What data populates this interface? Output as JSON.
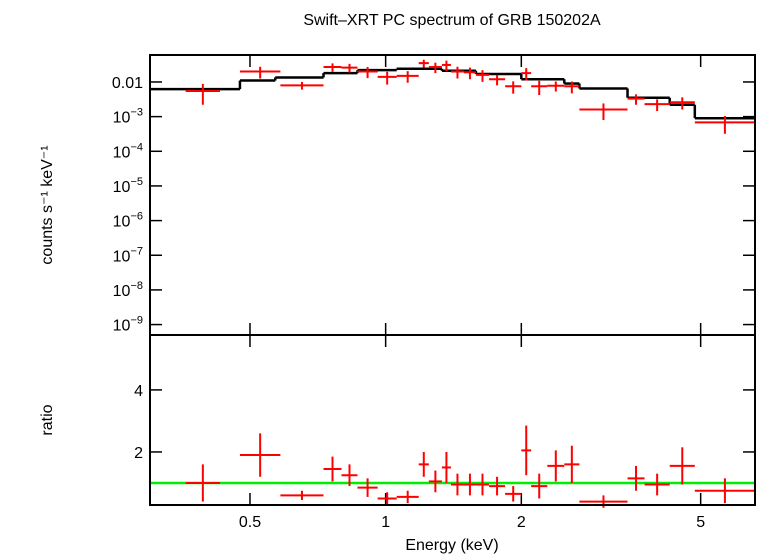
{
  "chart_data": [
    {
      "type": "spectrum",
      "title": "Swift–XRT PC spectrum of GRB 150202A",
      "y_label": "counts s⁻¹ keV⁻¹",
      "xscale": "log",
      "yscale": "log",
      "xlim": [
        0.3,
        6.6
      ],
      "ylim": [
        5e-10,
        0.06
      ],
      "yticks": [
        {
          "value": 0.01,
          "label": "0.01"
        },
        {
          "value": 0.001,
          "label": "10",
          "exponent": "−3"
        },
        {
          "value": 0.0001,
          "label": "10",
          "exponent": "−4"
        },
        {
          "value": 1e-05,
          "label": "10",
          "exponent": "−5"
        },
        {
          "value": 1e-06,
          "label": "10",
          "exponent": "−6"
        },
        {
          "value": 1e-07,
          "label": "10",
          "exponent": "−7"
        },
        {
          "value": 1e-08,
          "label": "10",
          "exponent": "−8"
        },
        {
          "value": 1e-09,
          "label": "10",
          "exponent": "−9"
        }
      ],
      "x_low": [
        0.36,
        0.475,
        0.584,
        0.728,
        0.798,
        0.866,
        0.96,
        1.058,
        1.184,
        1.247,
        1.333,
        1.396,
        1.492,
        1.586,
        1.696,
        1.841,
        2.0,
        2.103,
        2.284,
        2.491,
        2.691,
        3.441,
        3.754,
        4.269,
        4.853
      ],
      "x_high": [
        0.429,
        0.584,
        0.728,
        0.798,
        0.866,
        0.96,
        1.058,
        1.184,
        1.247,
        1.333,
        1.396,
        1.492,
        1.586,
        1.696,
        1.841,
        2.0,
        2.103,
        2.284,
        2.491,
        2.691,
        3.441,
        3.754,
        4.269,
        4.853,
        6.6
      ],
      "values": [
        0.0055,
        0.02,
        0.008,
        0.027,
        0.026,
        0.02,
        0.014,
        0.015,
        0.035,
        0.027,
        0.031,
        0.02,
        0.019,
        0.016,
        0.012,
        0.0075,
        0.018,
        0.0075,
        0.0078,
        0.0075,
        0.0016,
        0.0033,
        0.0023,
        0.0026,
        0.00068
      ],
      "errors": [
        0.0033,
        0.0074,
        0.002,
        0.0074,
        0.0073,
        0.0071,
        0.0056,
        0.0055,
        0.0088,
        0.009,
        0.0103,
        0.0074,
        0.007,
        0.0059,
        0.004,
        0.0029,
        0.007,
        0.0033,
        0.0025,
        0.0028,
        0.0008,
        0.0011,
        0.00085,
        0.001,
        0.00036
      ],
      "color": "#ff0000",
      "model_edges": [
        0.3,
        0.475,
        0.569,
        0.728,
        0.866,
        1.058,
        1.333,
        1.586,
        2.0,
        2.491,
        2.691,
        3.441,
        4.269,
        4.853,
        6.6
      ],
      "model_values": [
        0.0062,
        0.011,
        0.0135,
        0.018,
        0.022,
        0.024,
        0.021,
        0.017,
        0.012,
        0.009,
        0.0065,
        0.0035,
        0.0022,
        0.0009
      ],
      "model_color": "#000000"
    },
    {
      "type": "ratio",
      "x_label": "Energy (keV)",
      "y_label": "ratio",
      "xscale": "log",
      "xlim": [
        0.3,
        6.6
      ],
      "ylim": [
        0.29,
        5.77
      ],
      "xticks": [
        0.5,
        1,
        2,
        5
      ],
      "yticks": [
        2,
        4
      ],
      "values": [
        1.0,
        1.9,
        0.6,
        1.45,
        1.25,
        0.85,
        0.5,
        0.55,
        1.6,
        1.05,
        1.5,
        0.95,
        0.95,
        0.95,
        0.9,
        0.65,
        2.05,
        0.9,
        1.55,
        1.6,
        0.4,
        1.15,
        0.95,
        1.55,
        0.75
      ],
      "errors": [
        0.6,
        0.7,
        0.15,
        0.4,
        0.35,
        0.3,
        0.2,
        0.2,
        0.4,
        0.35,
        0.5,
        0.35,
        0.35,
        0.35,
        0.3,
        0.25,
        0.8,
        0.4,
        0.5,
        0.6,
        0.2,
        0.4,
        0.35,
        0.6,
        0.4
      ],
      "color": "#ff0000",
      "reference": 1,
      "reference_color": "#00ee00"
    }
  ]
}
